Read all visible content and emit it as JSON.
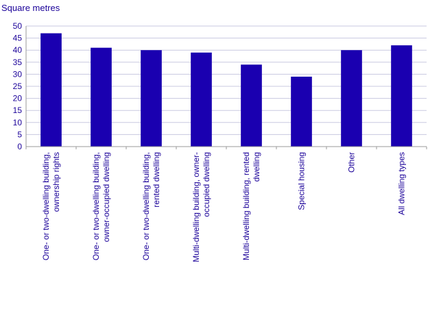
{
  "chart_data": {
    "type": "bar",
    "ylabel": "Square metres",
    "xlabel": "",
    "ylim": [
      0,
      50
    ],
    "yticks": [
      0,
      5,
      10,
      15,
      20,
      25,
      30,
      35,
      40,
      45,
      50
    ],
    "grid": true,
    "categories": [
      [
        "One- or two-dwelling building,",
        "ownership rights"
      ],
      [
        "One- or two-dwelling building,",
        "owner-occupied dwelling"
      ],
      [
        "One- or two-dwelling building,",
        "rented dwelling"
      ],
      [
        "Multi-dwelling building, owner-",
        "occupied dwelling"
      ],
      [
        "Multi-dwelling building, rented",
        "dwelling"
      ],
      [
        "Special housing"
      ],
      [
        "Other"
      ],
      [
        "All dwelling types"
      ]
    ],
    "values": [
      47,
      41,
      40,
      39,
      34,
      29,
      40,
      42
    ],
    "colors": {
      "bar": "#1a00b0",
      "text": "#1a0099",
      "grid": "#c8c8e0",
      "axis": "#999999"
    }
  }
}
